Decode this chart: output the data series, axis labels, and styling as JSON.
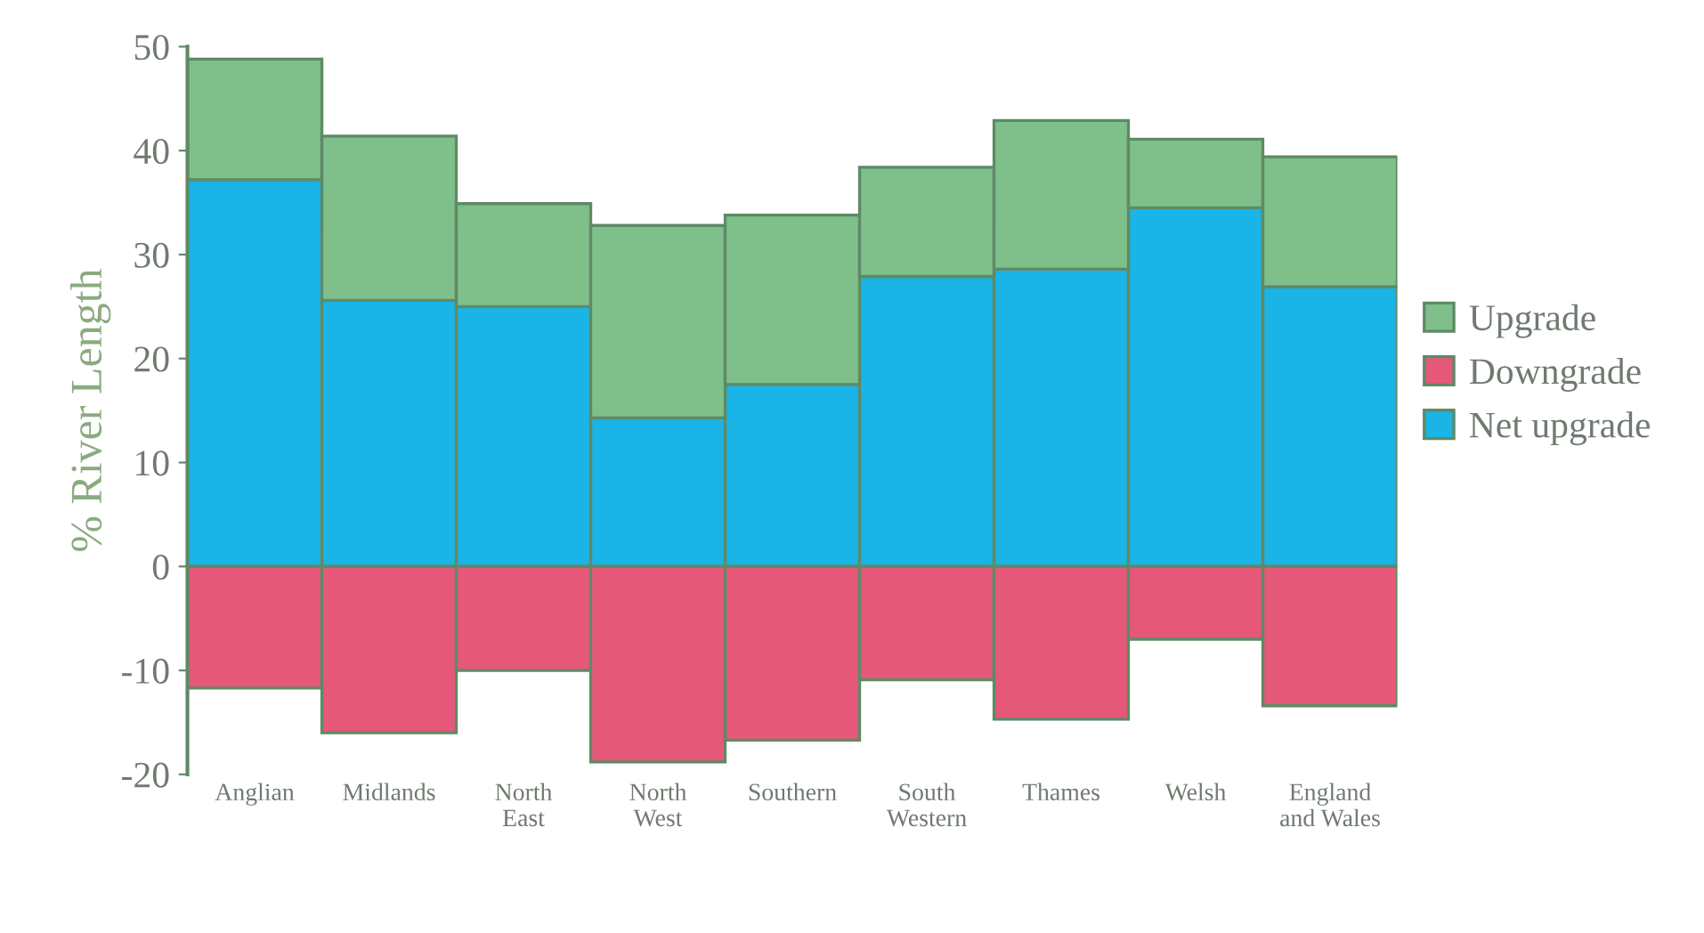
{
  "chart_data": {
    "type": "bar",
    "stacked": true,
    "ylabel": "% River Length",
    "categories": [
      "Anglian",
      "Midlands",
      "North\nEast",
      "North\nWest",
      "Southern",
      "South\nWestern",
      "Thames",
      "Welsh",
      "England\nand Wales"
    ],
    "series": [
      {
        "name": "Net upgrade",
        "color": "#1ab4e6",
        "values": [
          37.2,
          25.6,
          25.0,
          14.3,
          17.5,
          27.9,
          28.6,
          34.5,
          26.9
        ]
      },
      {
        "name": "Downgrade",
        "color": "#e6587a",
        "values": [
          -11.7,
          -16.0,
          -10.0,
          -18.8,
          -16.7,
          -10.9,
          -14.7,
          -7.0,
          -13.4
        ]
      },
      {
        "name": "Upgrade",
        "color": "#7fbf8a",
        "values": [
          11.6,
          15.8,
          9.9,
          18.5,
          16.3,
          10.5,
          14.3,
          6.6,
          12.5
        ]
      }
    ],
    "ylim": [
      -20,
      50
    ],
    "yticks": [
      -20,
      -10,
      0,
      10,
      20,
      30,
      40,
      50
    ],
    "grid": false,
    "legend": "right"
  }
}
